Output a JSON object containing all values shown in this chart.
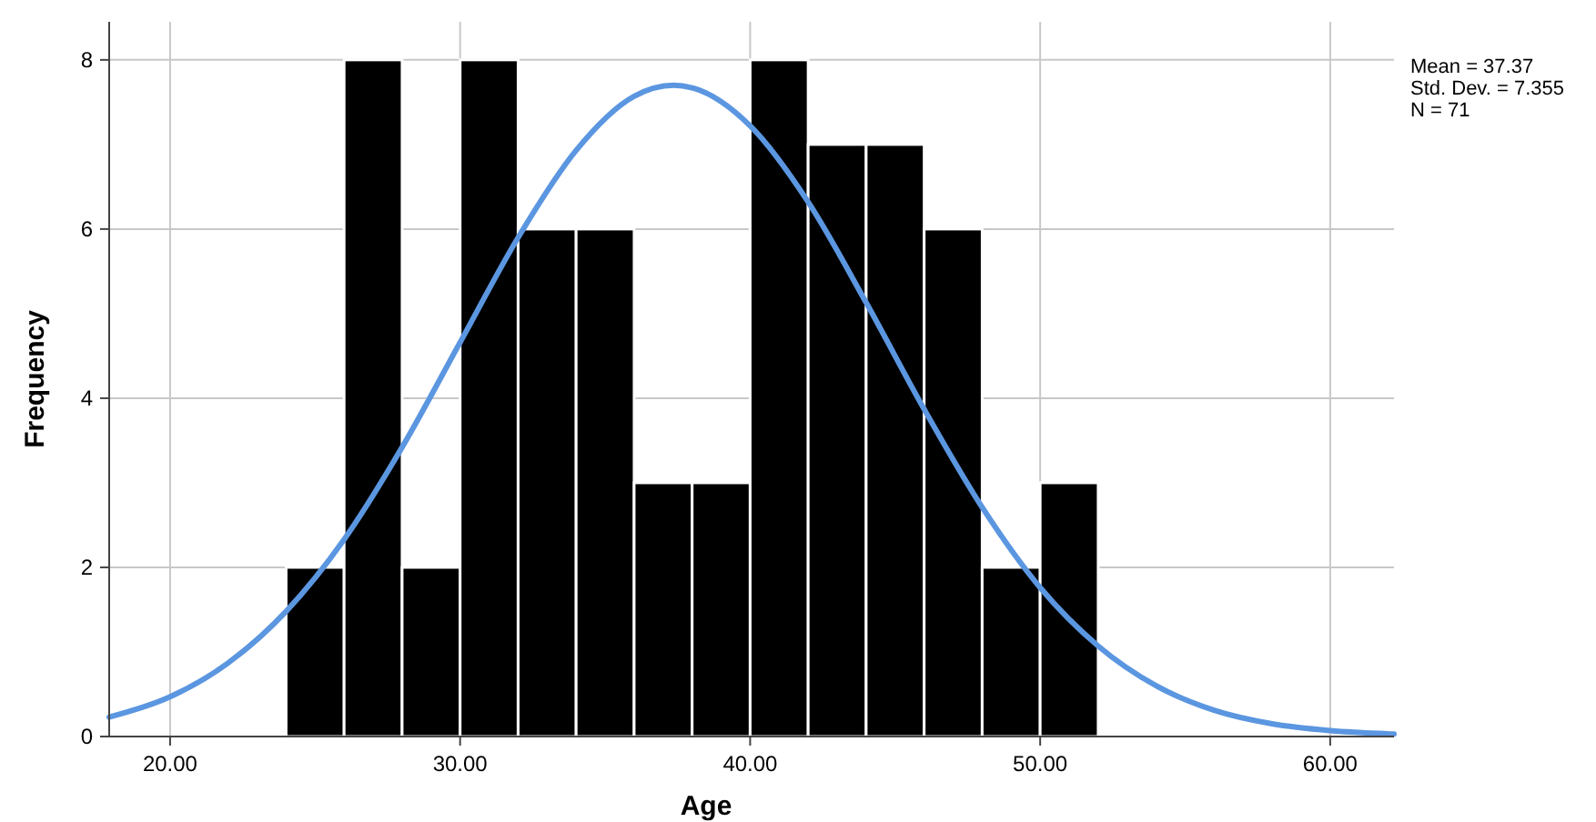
{
  "chart_data": {
    "type": "histogram",
    "xlabel": "Age",
    "ylabel": "Frequency",
    "bins": [
      24,
      26,
      28,
      30,
      32,
      34,
      36,
      38,
      40,
      42,
      44,
      46,
      48,
      50,
      52
    ],
    "values": [
      2,
      8,
      2,
      8,
      6,
      6,
      3,
      3,
      8,
      7,
      7,
      6,
      2,
      3
    ],
    "color": "#000000",
    "series": [
      {
        "type": "line",
        "color": "#5b96e0",
        "x": [
          17.9,
          20,
          22,
          24,
          26,
          28,
          30,
          32,
          34,
          36,
          37.37,
          38,
          40,
          42,
          44,
          46,
          48,
          50,
          52,
          54,
          56,
          58,
          60,
          62.2
        ],
        "values": [
          0.23,
          0.47,
          0.87,
          1.48,
          2.33,
          3.42,
          4.66,
          5.9,
          6.93,
          7.57,
          7.7,
          7.67,
          7.22,
          6.32,
          5.13,
          3.87,
          2.71,
          1.76,
          1.07,
          0.6,
          0.31,
          0.15,
          0.07,
          0.03
        ]
      }
    ],
    "xlim": [
      17.9,
      62.2
    ],
    "ylim": [
      0,
      8.45
    ],
    "xticks": [
      {
        "value": 20,
        "label": "20.00"
      },
      {
        "value": 30,
        "label": "30.00"
      },
      {
        "value": 40,
        "label": "40.00"
      },
      {
        "value": 50,
        "label": "50.00"
      },
      {
        "value": 60,
        "label": "60.00"
      }
    ],
    "yticks": [
      0,
      2,
      4,
      6,
      8
    ],
    "grid": true,
    "annotations": [
      "Mean = 37.37",
      "Std. Dev. = 7.355",
      "N = 71"
    ]
  }
}
